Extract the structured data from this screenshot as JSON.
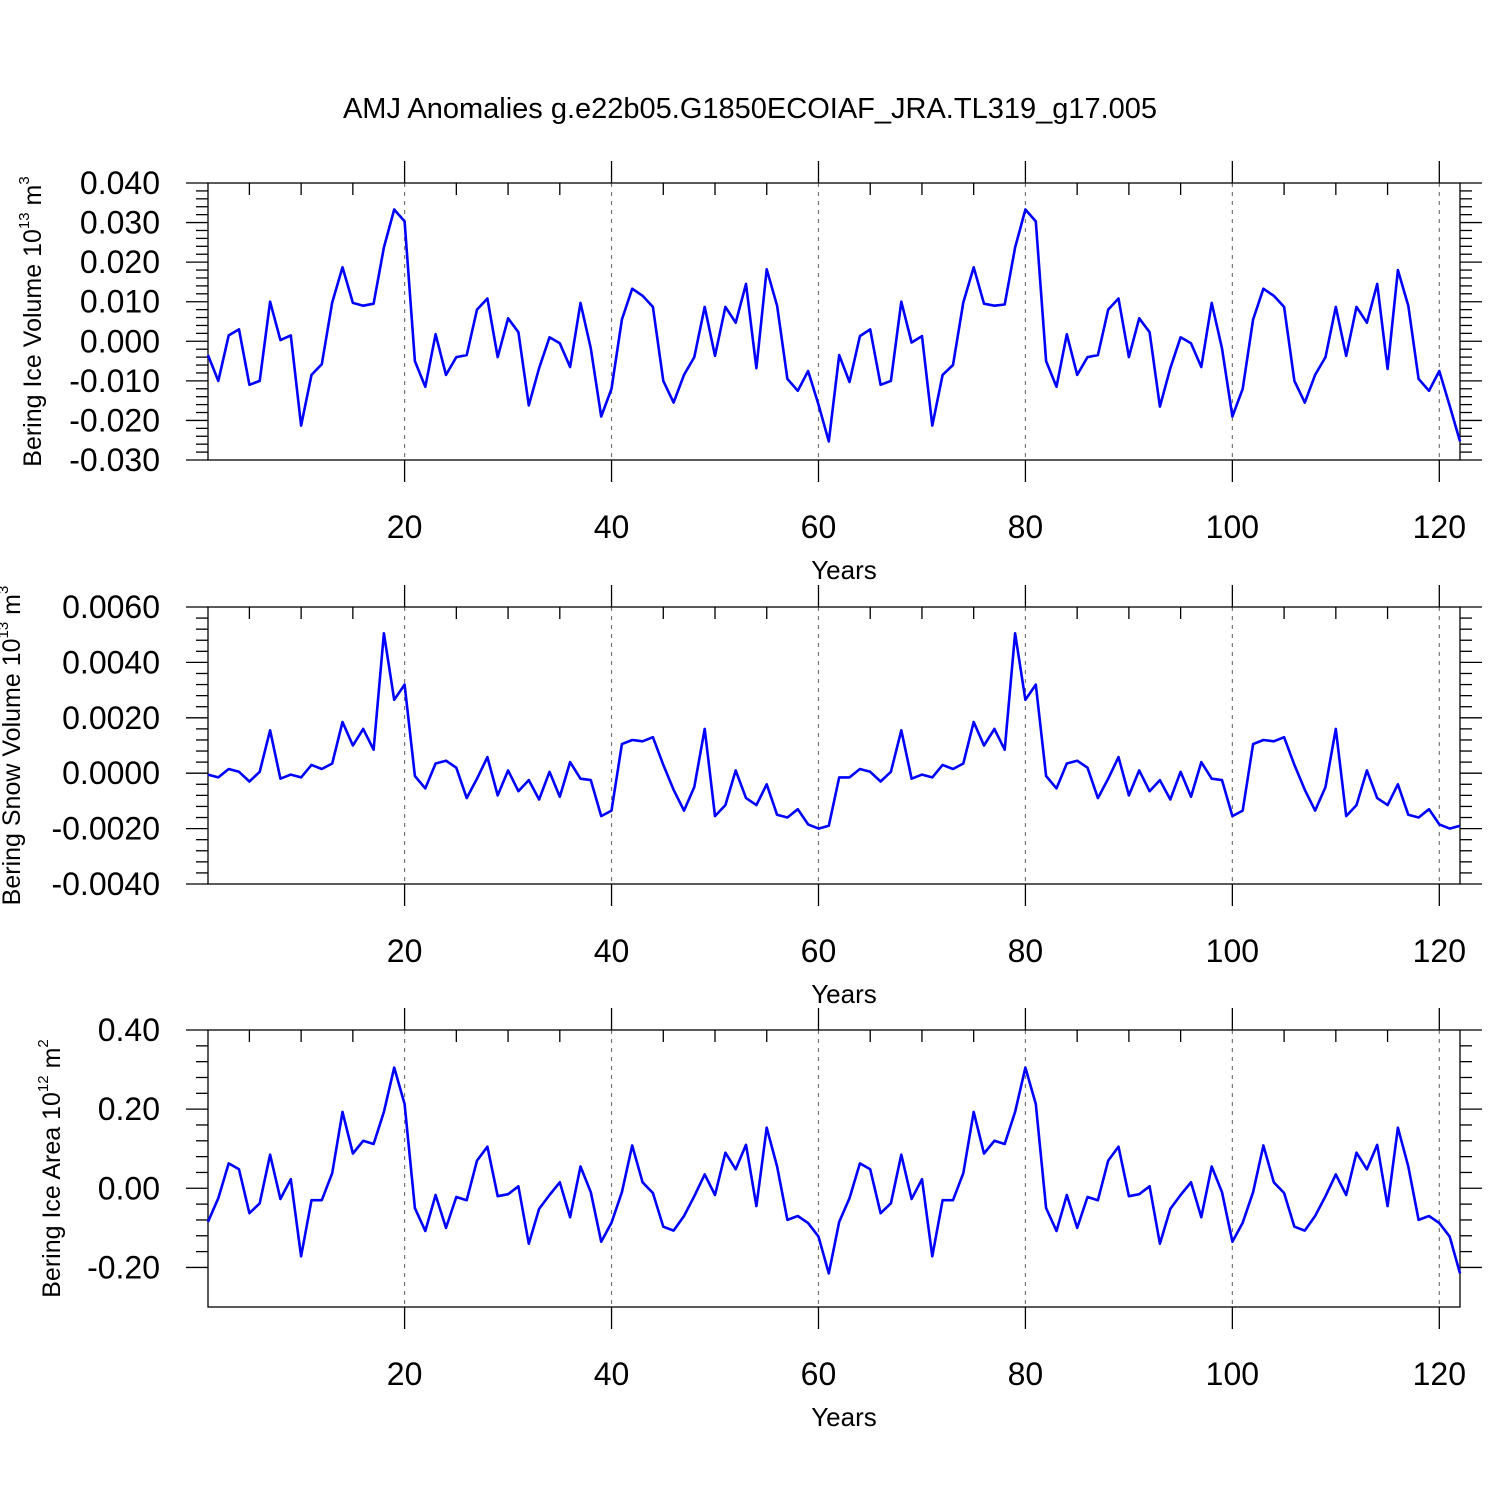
{
  "figure": {
    "title": "AMJ Anomalies g.e22b05.G1850ECOIAF_JRA.TL319_g17.005",
    "line_color": "#0000ff"
  },
  "chart_data": [
    {
      "type": "line",
      "xlabel": "Years",
      "ylabel": {
        "text": "Bering Ice Volume 10",
        "exp": "13",
        "unit": " m",
        "unit_exp": "3"
      },
      "xlim": [
        1,
        122
      ],
      "ylim": [
        -0.03,
        0.04
      ],
      "xticks": [
        20,
        40,
        60,
        80,
        100,
        120
      ],
      "xtick_labels": [
        "20",
        "40",
        "60",
        "80",
        "100",
        "120"
      ],
      "yticks": [
        -0.03,
        -0.02,
        -0.01,
        0.0,
        0.01,
        0.02,
        0.03,
        0.04
      ],
      "ytick_labels": [
        "-0.030",
        "-0.020",
        "-0.010",
        "0.000",
        "0.010",
        "0.020",
        "0.030",
        "0.040"
      ],
      "grid": "vertical dashed at major x ticks",
      "x_start": 1,
      "values": [
        -0.0035,
        -0.01,
        0.0015,
        0.003,
        -0.011,
        -0.01,
        0.01,
        0.0003,
        0.0015,
        -0.0213,
        -0.0085,
        -0.0058,
        0.0098,
        0.0187,
        0.0097,
        0.009,
        0.0095,
        0.0237,
        0.0333,
        0.0303,
        -0.005,
        -0.0115,
        0.0018,
        -0.0085,
        -0.004,
        -0.0035,
        0.008,
        0.0108,
        -0.004,
        0.0058,
        0.0023,
        -0.0162,
        -0.0068,
        0.001,
        -0.0005,
        -0.0065,
        0.0097,
        -0.0018,
        -0.019,
        -0.012,
        0.0055,
        0.0133,
        0.0115,
        0.0087,
        -0.01,
        -0.0155,
        -0.0085,
        -0.004,
        0.0087,
        -0.0037,
        0.0087,
        0.0047,
        0.0145,
        -0.0068,
        0.0182,
        0.009,
        -0.0095,
        -0.0125,
        -0.0075,
        -0.016,
        -0.0253,
        -0.0035,
        -0.0103,
        0.0013,
        0.003,
        -0.011,
        -0.01,
        0.01,
        -0.0003,
        0.0013,
        -0.0213,
        -0.0085,
        -0.006,
        0.0098,
        0.0187,
        0.0095,
        0.009,
        0.0093,
        0.0237,
        0.0333,
        0.0303,
        -0.005,
        -0.0115,
        0.0018,
        -0.0085,
        -0.004,
        -0.0035,
        0.008,
        0.0108,
        -0.004,
        0.0058,
        0.0023,
        -0.0165,
        -0.0068,
        0.001,
        -0.0005,
        -0.0065,
        0.0097,
        -0.0018,
        -0.019,
        -0.012,
        0.0055,
        0.0133,
        0.0115,
        0.0087,
        -0.01,
        -0.0155,
        -0.0085,
        -0.004,
        0.0087,
        -0.0037,
        0.0087,
        0.0047,
        0.0145,
        -0.007,
        0.018,
        0.009,
        -0.0095,
        -0.0125,
        -0.0075,
        -0.0163,
        -0.0253
      ]
    },
    {
      "type": "line",
      "xlabel": "Years",
      "ylabel": {
        "text": "Bering Snow Volume 10",
        "exp": "13",
        "unit": " m",
        "unit_exp": "3"
      },
      "xlim": [
        1,
        122
      ],
      "ylim": [
        -0.004,
        0.006
      ],
      "xticks": [
        20,
        40,
        60,
        80,
        100,
        120
      ],
      "xtick_labels": [
        "20",
        "40",
        "60",
        "80",
        "100",
        "120"
      ],
      "yticks": [
        -0.004,
        -0.002,
        0.0,
        0.002,
        0.004,
        0.006
      ],
      "ytick_labels": [
        "-0.0040",
        "-0.0020",
        "0.0000",
        "0.0020",
        "0.0040",
        "0.0060"
      ],
      "grid": "vertical dashed at major x ticks",
      "x_start": 1,
      "values": [
        -5e-05,
        -0.00015,
        0.00015,
        5e-05,
        -0.0003,
        5e-05,
        0.00155,
        -0.0002,
        -5e-05,
        -0.00015,
        0.0003,
        0.00015,
        0.00035,
        0.00185,
        0.001,
        0.0016,
        0.00085,
        0.00505,
        0.00265,
        0.0032,
        -0.0001,
        -0.00055,
        0.00035,
        0.00045,
        0.0002,
        -0.0009,
        -0.0002,
        0.00058,
        -0.0008,
        0.0001,
        -0.00065,
        -0.00025,
        -0.00095,
        5e-05,
        -0.00085,
        0.0004,
        -0.0002,
        -0.00025,
        -0.00155,
        -0.00135,
        0.00105,
        0.0012,
        0.00115,
        0.0013,
        0.0003,
        -0.0006,
        -0.00135,
        -0.0005,
        0.0016,
        -0.00155,
        -0.00115,
        0.0001,
        -0.0009,
        -0.00115,
        -0.0004,
        -0.0015,
        -0.0016,
        -0.0013,
        -0.00185,
        -0.002,
        -0.0019,
        -0.00015,
        -0.00015,
        0.00015,
        5e-05,
        -0.0003,
        5e-05,
        0.00155,
        -0.0002,
        -5e-05,
        -0.00015,
        0.0003,
        0.00015,
        0.00035,
        0.00185,
        0.001,
        0.0016,
        0.00085,
        0.00505,
        0.00265,
        0.0032,
        -0.0001,
        -0.00055,
        0.00035,
        0.00045,
        0.0002,
        -0.0009,
        -0.0002,
        0.00058,
        -0.0008,
        0.0001,
        -0.00065,
        -0.00025,
        -0.00095,
        5e-05,
        -0.00085,
        0.0004,
        -0.0002,
        -0.00025,
        -0.00155,
        -0.00135,
        0.00105,
        0.0012,
        0.00115,
        0.0013,
        0.0003,
        -0.0006,
        -0.00135,
        -0.0005,
        0.0016,
        -0.00155,
        -0.00115,
        0.0001,
        -0.0009,
        -0.00115,
        -0.0004,
        -0.0015,
        -0.0016,
        -0.0013,
        -0.00185,
        -0.002,
        -0.0019
      ]
    },
    {
      "type": "line",
      "xlabel": "Years",
      "ylabel": {
        "text": "Bering Ice Area 10",
        "exp": "12",
        "unit": " m",
        "unit_exp": "2"
      },
      "xlim": [
        1,
        122
      ],
      "ylim": [
        -0.3,
        0.4
      ],
      "xticks": [
        20,
        40,
        60,
        80,
        100,
        120
      ],
      "xtick_labels": [
        "20",
        "40",
        "60",
        "80",
        "100",
        "120"
      ],
      "yticks": [
        -0.2,
        0.0,
        0.2,
        0.4
      ],
      "ytick_labels": [
        "-0.20",
        "0.00",
        "0.20",
        "0.40"
      ],
      "grid": "vertical dashed at major x ticks",
      "x_start": 1,
      "values": [
        -0.085,
        -0.025,
        0.063,
        0.048,
        -0.063,
        -0.038,
        0.085,
        -0.027,
        0.023,
        -0.172,
        -0.03,
        -0.03,
        0.038,
        0.193,
        0.088,
        0.12,
        0.112,
        0.193,
        0.305,
        0.213,
        -0.05,
        -0.108,
        -0.017,
        -0.1,
        -0.022,
        -0.03,
        0.07,
        0.105,
        -0.02,
        -0.015,
        0.005,
        -0.14,
        -0.052,
        -0.017,
        0.015,
        -0.073,
        0.055,
        -0.01,
        -0.135,
        -0.087,
        -0.01,
        0.108,
        0.015,
        -0.012,
        -0.097,
        -0.107,
        -0.07,
        -0.02,
        0.035,
        -0.017,
        0.09,
        0.048,
        0.11,
        -0.045,
        0.153,
        0.055,
        -0.08,
        -0.07,
        -0.088,
        -0.122,
        -0.215,
        -0.085,
        -0.025,
        0.063,
        0.048,
        -0.063,
        -0.038,
        0.085,
        -0.027,
        0.023,
        -0.172,
        -0.03,
        -0.03,
        0.038,
        0.193,
        0.088,
        0.12,
        0.112,
        0.193,
        0.305,
        0.213,
        -0.05,
        -0.108,
        -0.017,
        -0.1,
        -0.022,
        -0.03,
        0.07,
        0.105,
        -0.02,
        -0.015,
        0.005,
        -0.14,
        -0.052,
        -0.017,
        0.015,
        -0.073,
        0.055,
        -0.01,
        -0.135,
        -0.087,
        -0.01,
        0.108,
        0.015,
        -0.012,
        -0.097,
        -0.107,
        -0.07,
        -0.02,
        0.035,
        -0.017,
        0.09,
        0.048,
        0.11,
        -0.045,
        0.153,
        0.055,
        -0.08,
        -0.07,
        -0.088,
        -0.122,
        -0.215
      ]
    }
  ]
}
